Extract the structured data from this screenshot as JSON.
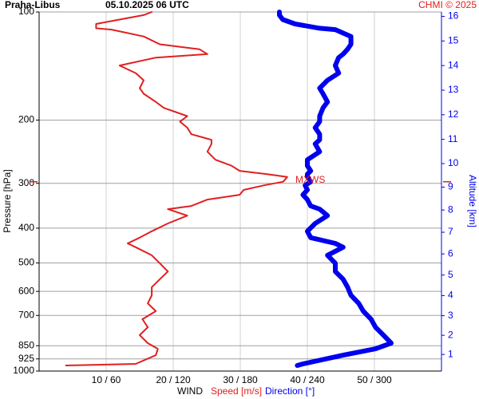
{
  "chart_data": {
    "type": "line",
    "title": "Praha-Libus",
    "subtitle": "05.10.2025 06 UTC",
    "credit": "CHMI © 2025",
    "ylabel": "Pressure [hPa]",
    "y2label": "Altitude [km]",
    "xlabel": "WIND",
    "xlabel_speed": "Speed [m/s]",
    "xlabel_direction": "Direction [°]",
    "ylog": true,
    "ylim": [
      1000,
      100
    ],
    "yticks": [
      100,
      200,
      300,
      400,
      500,
      600,
      700,
      850,
      925,
      1000
    ],
    "xlim": [
      0,
      60
    ],
    "x2lim": [
      0,
      360
    ],
    "xticks": [
      {
        "value": 10,
        "label": "10 / 60"
      },
      {
        "value": 20,
        "label": "20 / 120"
      },
      {
        "value": 30,
        "label": "30 / 180"
      },
      {
        "value": 40,
        "label": "40 / 240"
      },
      {
        "value": 50,
        "label": "50 / 300"
      }
    ],
    "y2ticks": [
      1,
      2,
      3,
      4,
      5,
      6,
      7,
      8,
      9,
      10,
      11,
      12,
      13,
      14,
      15,
      16
    ],
    "grid": true,
    "annotations": [
      {
        "text": "MXWS",
        "pressure": 297,
        "color": "#e02020"
      }
    ],
    "pressure": [
      965,
      955,
      903,
      867,
      836,
      794,
      755,
      717,
      681,
      648,
      615,
      584,
      555,
      528,
      501,
      476,
      452,
      441,
      425,
      408,
      388,
      369,
      354,
      347,
      333,
      323,
      313,
      304,
      297,
      288,
      283,
      277,
      268,
      258,
      245,
      233,
      227,
      219,
      210,
      202,
      195,
      185,
      178,
      169,
      163,
      155,
      148,
      141,
      134,
      131,
      127,
      123,
      117,
      112,
      111,
      108,
      105,
      102,
      100
    ],
    "series": [
      {
        "name": "Speed",
        "color": "#e02020",
        "values": [
          4.0,
          14.4,
          17.4,
          17.7,
          16.2,
          15,
          16.2,
          15.4,
          17.4,
          16.2,
          16.8,
          16.8,
          18,
          19.2,
          18,
          16.8,
          14.4,
          13.2,
          15,
          16.8,
          19.2,
          22.1,
          19.2,
          22.7,
          25.1,
          29.9,
          30.5,
          33.5,
          36.4,
          37,
          34,
          29.9,
          28.7,
          26.3,
          25.1,
          25.7,
          25.7,
          22.7,
          22.1,
          21,
          22.1,
          18.6,
          17.4,
          15.6,
          15,
          15.6,
          14.4,
          12,
          17.4,
          25.1,
          23.9,
          18,
          15.6,
          10.8,
          8.5,
          8.5,
          12,
          15.6,
          16.8
        ]
      },
      {
        "name": "Direction",
        "color": "#0000ee",
        "axis": "x2",
        "values": [
          231,
          236,
          272,
          301,
          315,
          308,
          301,
          297,
          290,
          286,
          279,
          276,
          272,
          265,
          265,
          258,
          272,
          265,
          243,
          240,
          247,
          258,
          251,
          243,
          240,
          236,
          240,
          238,
          243,
          240,
          240,
          243,
          240,
          240,
          251,
          247,
          251,
          251,
          247,
          251,
          251,
          254,
          258,
          254,
          251,
          258,
          268,
          265,
          268,
          272,
          276,
          279,
          279,
          265,
          251,
          229,
          218,
          215,
          215
        ]
      }
    ]
  }
}
